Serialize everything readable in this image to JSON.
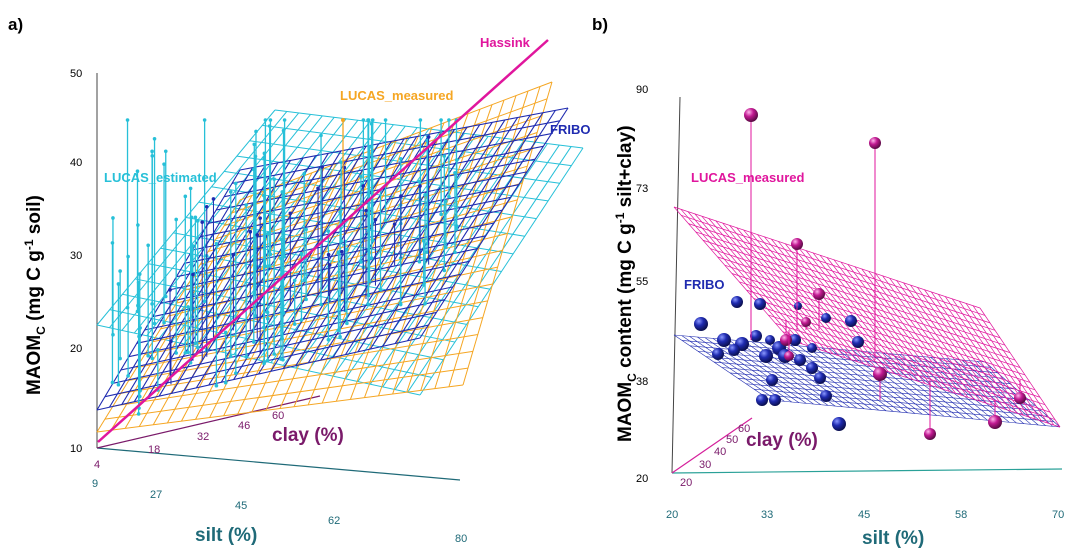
{
  "panels": [
    {
      "label": "a)",
      "chart_data": {
        "type": "scatter",
        "ylabel_main": "MAOM",
        "ylabel_sub": "C",
        "ylabel_rest": " (mg C g",
        "ylabel_sup": "-1",
        "ylabel_end": " soil)",
        "xlabel": "silt (%)",
        "zlabel": "clay (%)",
        "y_ticks": [
          "10",
          "20",
          "30",
          "40",
          "50"
        ],
        "silt_ticks": [
          "9",
          "27",
          "45",
          "62",
          "80"
        ],
        "clay_ticks": [
          "4",
          "18",
          "32",
          "46",
          "60"
        ],
        "series": [
          {
            "name": "Hassink",
            "color": "#e0169d"
          },
          {
            "name": "LUCAS_measured",
            "color": "#f5a623"
          },
          {
            "name": "FRIBO",
            "color": "#1f2bb0"
          },
          {
            "name": "LUCAS_estimated",
            "color": "#27c0d8"
          }
        ]
      }
    },
    {
      "label": "b)",
      "chart_data": {
        "type": "scatter",
        "ylabel_main": "MAOM",
        "ylabel_sub": "C",
        "ylabel_rest": " content (mg C g",
        "ylabel_sup": "-1",
        "ylabel_end": " silt+clay)",
        "xlabel": "silt (%)",
        "zlabel": "clay (%)",
        "y_ticks": [
          "20",
          "38",
          "55",
          "73",
          "90"
        ],
        "silt_ticks": [
          "20",
          "33",
          "45",
          "58",
          "70"
        ],
        "clay_ticks": [
          "20",
          "30",
          "40",
          "50",
          "60"
        ],
        "series": [
          {
            "name": "LUCAS_measured",
            "color": "#e0169d"
          },
          {
            "name": "FRIBO",
            "color": "#1f2bb0"
          }
        ]
      }
    }
  ]
}
